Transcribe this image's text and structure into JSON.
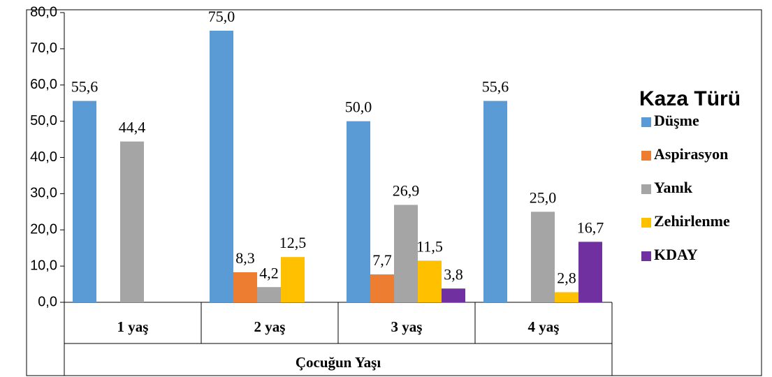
{
  "chart_data": {
    "type": "bar",
    "x_label": "Çocuğun Yaşı",
    "legend_title": "Kaza Türü",
    "legend_position": "right",
    "categories": [
      "1 yaş",
      "2 yaş",
      "3 yaş",
      "4 yaş"
    ],
    "series": [
      {
        "name": "Düşme",
        "color": "#5b9bd5",
        "values": [
          55.6,
          75.0,
          50.0,
          55.6
        ],
        "value_labels": [
          "55,6",
          "75,0",
          "50,0",
          "55,6"
        ]
      },
      {
        "name": "Aspirasyon",
        "color": "#ed7d31",
        "values": [
          null,
          8.3,
          7.7,
          null
        ],
        "value_labels": [
          null,
          "8,3",
          "7,7",
          null
        ]
      },
      {
        "name": "Yanık",
        "color": "#a5a5a5",
        "values": [
          44.4,
          4.2,
          26.9,
          25.0
        ],
        "value_labels": [
          "44,4",
          "4,2",
          "26,9",
          "25,0"
        ]
      },
      {
        "name": "Zehirlenme",
        "color": "#ffc000",
        "values": [
          null,
          12.5,
          11.5,
          2.8
        ],
        "value_labels": [
          null,
          "12,5",
          "11,5",
          "2,8"
        ]
      },
      {
        "name": "KDAY",
        "color": "#7030a0",
        "values": [
          null,
          null,
          3.8,
          16.7
        ],
        "value_labels": [
          null,
          null,
          "3,8",
          "16,7"
        ]
      }
    ],
    "ylim": [
      0,
      80
    ],
    "yticks": [
      {
        "value": 0,
        "label": "0,0"
      },
      {
        "value": 10,
        "label": "10,0"
      },
      {
        "value": 20,
        "label": "20,0"
      },
      {
        "value": 30,
        "label": "30,0"
      },
      {
        "value": 40,
        "label": "40,0"
      },
      {
        "value": 50,
        "label": "50,0"
      },
      {
        "value": 60,
        "label": "60,0"
      },
      {
        "value": 70,
        "label": "70,0"
      },
      {
        "value": 80,
        "label": "80,0"
      }
    ],
    "grid": false
  }
}
